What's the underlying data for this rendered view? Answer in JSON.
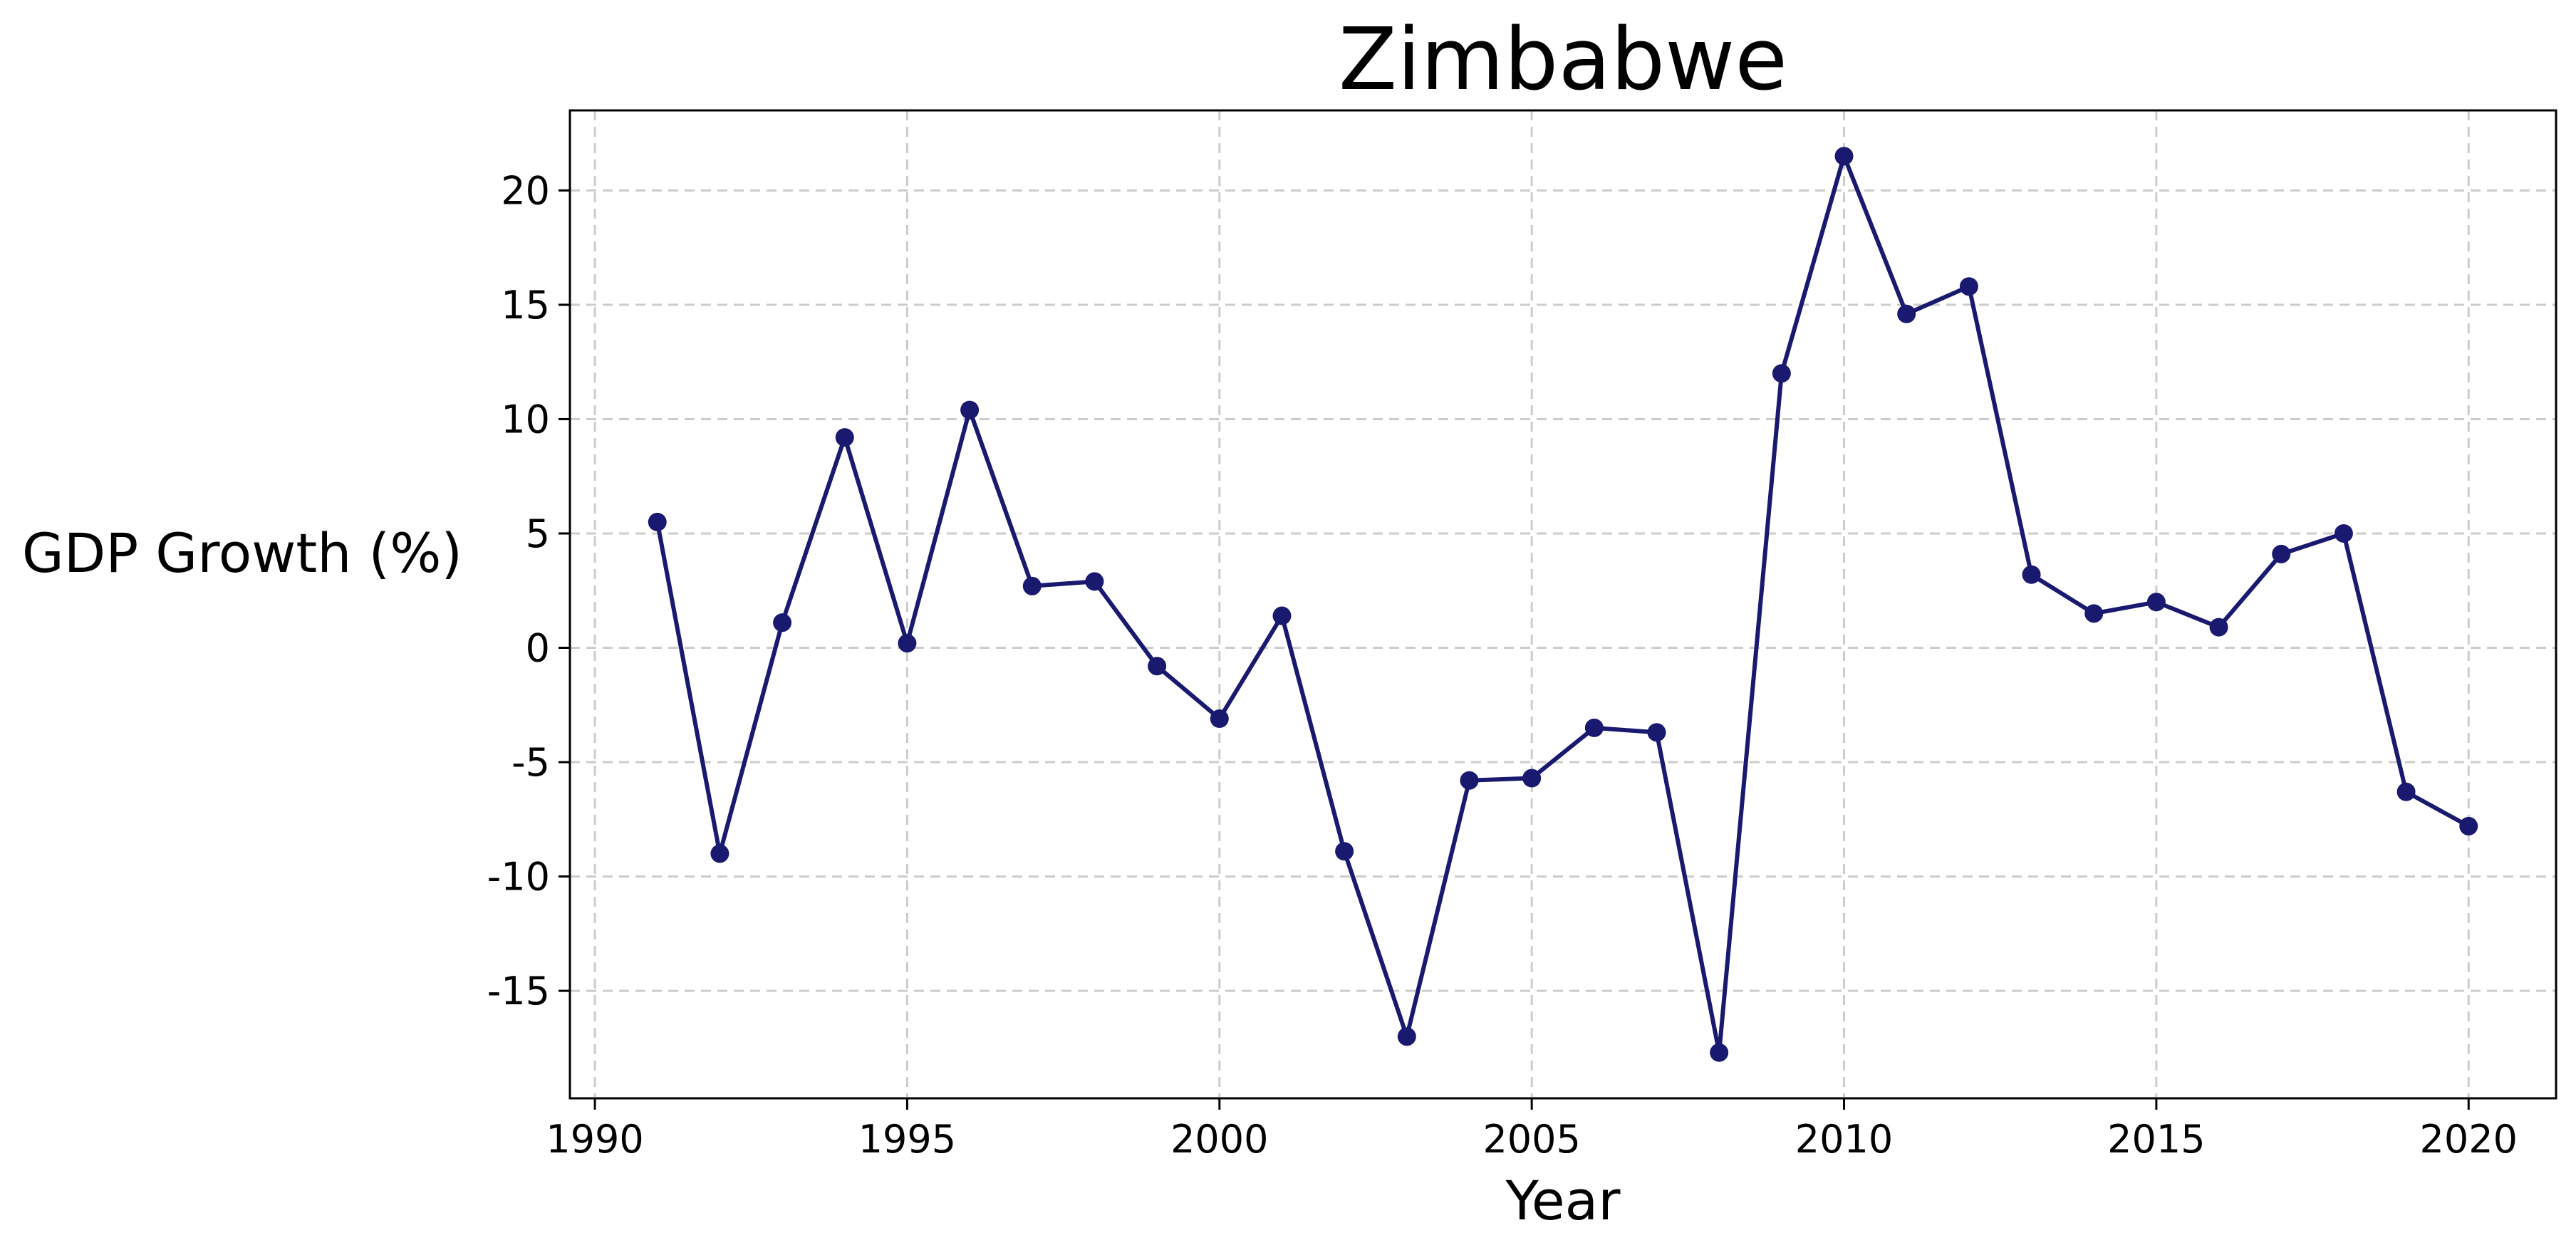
{
  "chart_data": {
    "type": "line",
    "title": "Zimbabwe",
    "xlabel": "Year",
    "ylabel": "GDP Growth (%)",
    "xlim": [
      1989.6,
      2021.4
    ],
    "ylim": [
      -19.7,
      23.5
    ],
    "xticks": [
      1990,
      1995,
      2000,
      2005,
      2010,
      2015,
      2020
    ],
    "yticks": [
      -15,
      -10,
      -5,
      0,
      5,
      10,
      15,
      20
    ],
    "grid": true,
    "color": "#191970",
    "x": [
      1991,
      1992,
      1993,
      1994,
      1995,
      1996,
      1997,
      1998,
      1999,
      2000,
      2001,
      2002,
      2003,
      2004,
      2005,
      2006,
      2007,
      2008,
      2009,
      2010,
      2011,
      2012,
      2013,
      2014,
      2015,
      2016,
      2017,
      2018,
      2019,
      2020
    ],
    "y": [
      5.5,
      -9.0,
      1.1,
      9.2,
      0.2,
      10.4,
      2.7,
      2.9,
      -0.8,
      -3.1,
      1.4,
      -8.9,
      -17.0,
      -5.8,
      -5.7,
      -3.5,
      -3.7,
      -17.7,
      12.0,
      21.5,
      14.6,
      15.8,
      3.2,
      1.5,
      2.0,
      0.9,
      4.1,
      5.0,
      -6.3,
      -7.8
    ]
  }
}
